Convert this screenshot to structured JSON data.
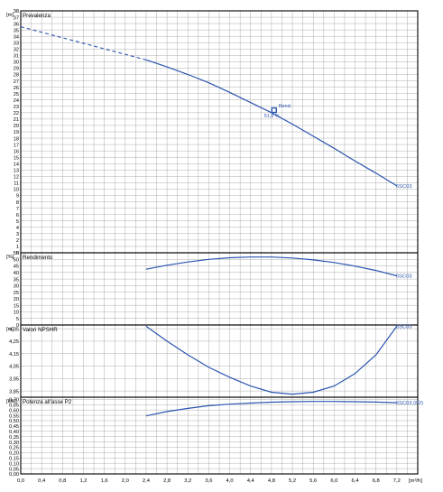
{
  "colors": {
    "curve": "#2a55b0",
    "grid": "#9a9a9a",
    "frame": "#000000",
    "label": "#2a55b0"
  },
  "chart_data": [
    {
      "type": "line",
      "title": "Prevalenza",
      "unit": "[m]",
      "ylim": [
        0,
        38
      ],
      "yticks": [
        0,
        1,
        2,
        3,
        4,
        5,
        6,
        7,
        8,
        9,
        10,
        11,
        12,
        13,
        14,
        15,
        16,
        17,
        18,
        19,
        20,
        21,
        22,
        23,
        24,
        25,
        26,
        27,
        28,
        29,
        30,
        31,
        32,
        33,
        34,
        35,
        36,
        37,
        38
      ],
      "series": [
        {
          "name": "6SC03",
          "dashed": {
            "x": [
              0,
              2.4
            ],
            "y": [
              35.5,
              30.3
            ]
          },
          "solid": {
            "x": [
              2.4,
              2.8,
              3.2,
              3.6,
              4.0,
              4.4,
              4.8,
              5.2,
              5.6,
              6.0,
              6.4,
              6.8,
              7.2
            ],
            "y": [
              30.3,
              29.2,
              28.0,
              26.7,
              25.2,
              23.6,
              22.0,
              20.2,
              18.3,
              16.4,
              14.4,
              12.5,
              10.5
            ]
          }
        }
      ],
      "operating_point": {
        "x": 4.85,
        "y": 22.4,
        "label_top": "Rend.",
        "label_bottom": "51,8 %"
      }
    },
    {
      "type": "line",
      "title": "Rendimento",
      "unit": "[%]",
      "ylim": [
        0,
        55
      ],
      "yticks": [
        0,
        5,
        10,
        15,
        20,
        25,
        30,
        35,
        40,
        45,
        50,
        55
      ],
      "series": [
        {
          "name": "6SC03",
          "x": [
            2.4,
            2.8,
            3.2,
            3.6,
            4.0,
            4.4,
            4.8,
            5.2,
            5.6,
            6.0,
            6.4,
            6.8,
            7.2
          ],
          "y": [
            42.5,
            45.5,
            48.0,
            50.0,
            51.2,
            51.8,
            51.8,
            51.0,
            49.6,
            47.6,
            44.8,
            41.5,
            37.5
          ]
        }
      ]
    },
    {
      "type": "line",
      "title": "Valori NPSHR",
      "unit": "[m]",
      "ylim": [
        3.8,
        4.38
      ],
      "ylabels": [
        {
          "v": 3.85,
          "t": "3,85"
        },
        {
          "v": 3.95,
          "t": "3,95"
        },
        {
          "v": 4.05,
          "t": "4,05"
        },
        {
          "v": 4.15,
          "t": "4,15"
        },
        {
          "v": 4.25,
          "t": "4,25"
        },
        {
          "v": 4.35,
          "t": "4,35"
        }
      ],
      "series": [
        {
          "name": "6SC03",
          "x": [
            2.4,
            2.8,
            3.2,
            3.6,
            4.0,
            4.4,
            4.8,
            5.2,
            5.6,
            6.0,
            6.4,
            6.8,
            7.2
          ],
          "y": [
            4.37,
            4.25,
            4.14,
            4.04,
            3.96,
            3.89,
            3.84,
            3.825,
            3.84,
            3.89,
            3.99,
            4.14,
            4.37
          ]
        }
      ]
    },
    {
      "type": "line",
      "title": "Potenza all'asse P2",
      "unit": "[kW]",
      "ylim": [
        0,
        0.72
      ],
      "ylabels": [
        {
          "v": 0.0,
          "t": "0,00"
        },
        {
          "v": 0.05,
          "t": "0,05"
        },
        {
          "v": 0.1,
          "t": "0,10"
        },
        {
          "v": 0.15,
          "t": "0,15"
        },
        {
          "v": 0.2,
          "t": "0,20"
        },
        {
          "v": 0.25,
          "t": "0,25"
        },
        {
          "v": 0.3,
          "t": "0,30"
        },
        {
          "v": 0.35,
          "t": "0,35"
        },
        {
          "v": 0.4,
          "t": "0,40"
        },
        {
          "v": 0.45,
          "t": "0,45"
        },
        {
          "v": 0.5,
          "t": "0,50"
        },
        {
          "v": 0.55,
          "t": "0,55"
        },
        {
          "v": 0.6,
          "t": "0,60"
        },
        {
          "v": 0.65,
          "t": "0,65"
        },
        {
          "v": 0.7,
          "t": "0,70"
        }
      ],
      "series": [
        {
          "name": "6SC03 (P2)",
          "x": [
            2.4,
            2.8,
            3.2,
            3.6,
            4.0,
            4.4,
            4.8,
            5.2,
            5.6,
            6.0,
            6.4,
            6.8,
            7.2
          ],
          "y": [
            0.545,
            0.585,
            0.615,
            0.64,
            0.655,
            0.665,
            0.673,
            0.678,
            0.68,
            0.68,
            0.678,
            0.674,
            0.668
          ]
        }
      ]
    }
  ],
  "x_axis": {
    "unit": "[m³/h]",
    "xlim": [
      0,
      7.6
    ],
    "ticks": [
      {
        "v": 0.0,
        "t": "0,0"
      },
      {
        "v": 0.4,
        "t": "0,4"
      },
      {
        "v": 0.8,
        "t": "0,8"
      },
      {
        "v": 1.2,
        "t": "1,2"
      },
      {
        "v": 1.6,
        "t": "1,6"
      },
      {
        "v": 2.0,
        "t": "2,0"
      },
      {
        "v": 2.4,
        "t": "2,4"
      },
      {
        "v": 2.8,
        "t": "2,8"
      },
      {
        "v": 3.2,
        "t": "3,2"
      },
      {
        "v": 3.6,
        "t": "3,6"
      },
      {
        "v": 4.0,
        "t": "4,0"
      },
      {
        "v": 4.4,
        "t": "4,4"
      },
      {
        "v": 4.8,
        "t": "4,8"
      },
      {
        "v": 5.2,
        "t": "5,2"
      },
      {
        "v": 5.6,
        "t": "5,6"
      },
      {
        "v": 6.0,
        "t": "6,0"
      },
      {
        "v": 6.4,
        "t": "6,4"
      },
      {
        "v": 6.8,
        "t": "6,8"
      },
      {
        "v": 7.2,
        "t": "7,2"
      }
    ]
  }
}
